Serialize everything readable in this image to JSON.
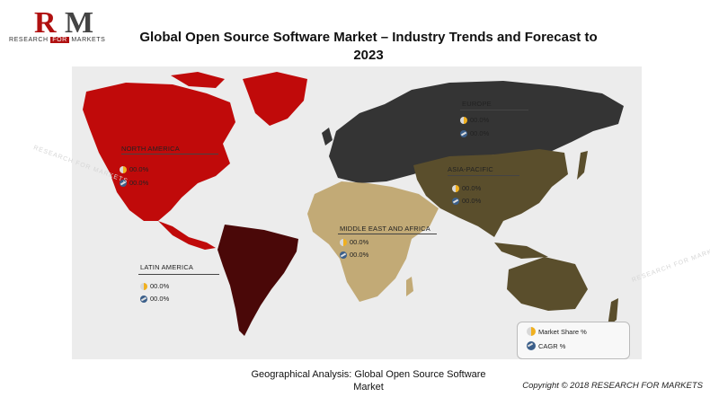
{
  "logo": {
    "mark": "RM",
    "subtitle_pre": "RESEARCH",
    "subtitle_for": "FOR",
    "subtitle_post": "MARKETS"
  },
  "title_line1": "Global Open Source Software Market – Industry Trends and Forecast to",
  "title_line2": "2023",
  "regions": [
    {
      "name": "NORTH AMERICA",
      "market_share": "00.0%",
      "cagr": "00.0%",
      "color": "#c00a0a"
    },
    {
      "name": "EUROPE",
      "market_share": "00.0%",
      "cagr": "00.0%",
      "color": "#343434"
    },
    {
      "name": "ASIA-PACIFIC",
      "market_share": "00.0%",
      "cagr": "00.0%",
      "color": "#5a4e2c"
    },
    {
      "name": "MIDDLE EAST AND AFRICA",
      "market_share": "00.0%",
      "cagr": "00.0%",
      "color": "#c2aa76"
    },
    {
      "name": "LATIN AMERICA",
      "market_share": "00.0%",
      "cagr": "00.0%",
      "color": "#4a0808"
    }
  ],
  "legend": {
    "market_share_label": "Market Share %",
    "cagr_label": "CAGR %"
  },
  "caption_line1": "Geographical Analysis: Global Open Source Software",
  "caption_line2": "Market",
  "copyright": "Copyright © 2018 RESEARCH FOR MARKETS",
  "watermark_text": "RESEARCH FOR MARKETS",
  "icons": [
    "pie-chart-icon",
    "cagr-trend-icon"
  ]
}
